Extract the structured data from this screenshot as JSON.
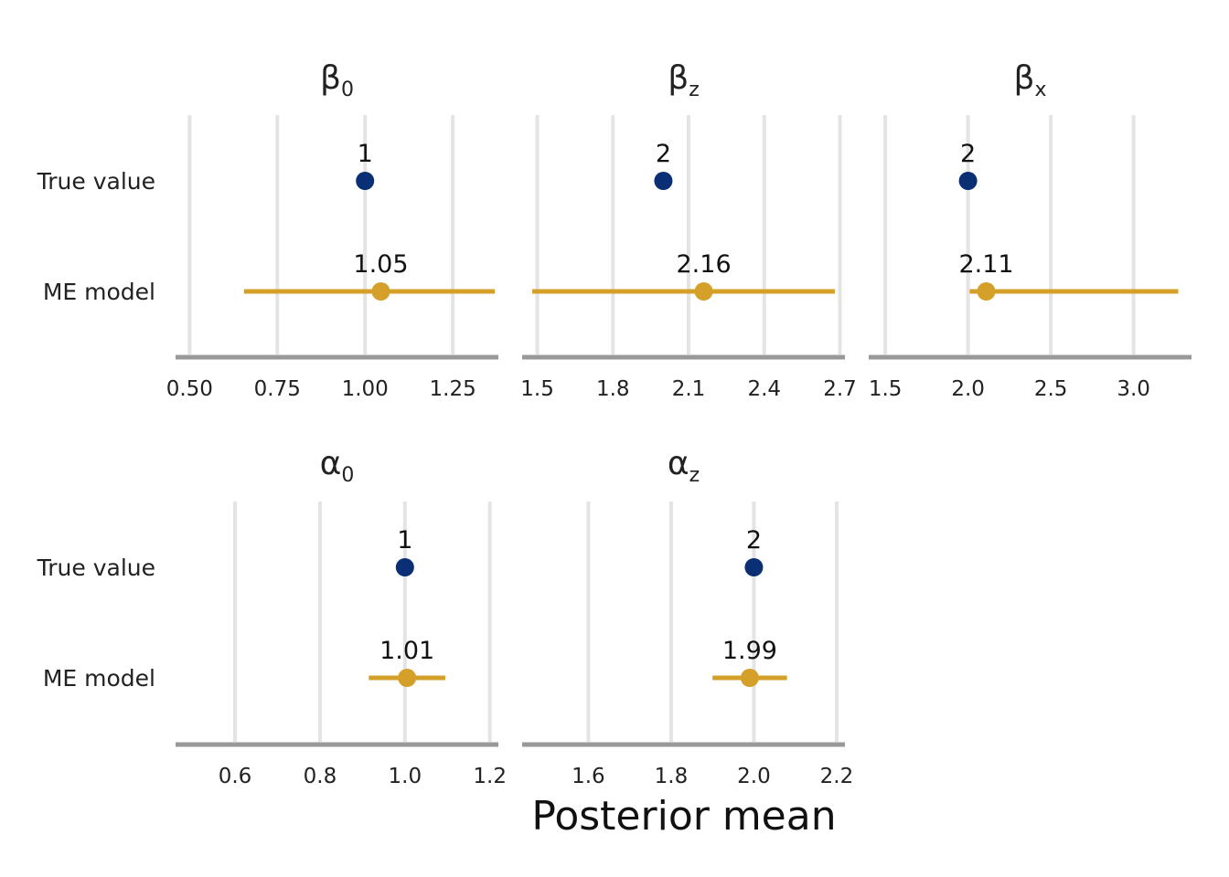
{
  "chart_data": {
    "type": "scatter",
    "xlabel": "Posterior mean",
    "row_labels": [
      "True value",
      "ME model"
    ],
    "colors": {
      "true_value": "#0b2f74",
      "me_model": "#d4a02a",
      "grid": "#e4e4e4",
      "axis": "#999999"
    },
    "panels": [
      {
        "title": {
          "base": "β",
          "sub": "0"
        },
        "xlim": [
          0.46,
          1.38
        ],
        "ticks": [
          0.5,
          0.75,
          1.0,
          1.25
        ],
        "tick_labels": [
          "0.50",
          "0.75",
          "1.00",
          "1.25"
        ],
        "true_value": {
          "x": 1.0,
          "label": "1"
        },
        "me_model": {
          "x": 1.045,
          "lo": 0.655,
          "hi": 1.37,
          "label": "1.05"
        }
      },
      {
        "title": {
          "base": "β",
          "sub": "z"
        },
        "xlim": [
          1.44,
          2.72
        ],
        "ticks": [
          1.5,
          1.8,
          2.1,
          2.4,
          2.7
        ],
        "tick_labels": [
          "1.5",
          "1.8",
          "2.1",
          "2.4",
          "2.7"
        ],
        "true_value": {
          "x": 2.0,
          "label": "2"
        },
        "me_model": {
          "x": 2.16,
          "lo": 1.48,
          "hi": 2.68,
          "label": "2.16"
        }
      },
      {
        "title": {
          "base": "β",
          "sub": "x"
        },
        "xlim": [
          1.4,
          3.35
        ],
        "ticks": [
          1.5,
          2.0,
          2.5,
          3.0
        ],
        "tick_labels": [
          "1.5",
          "2.0",
          "2.5",
          "3.0"
        ],
        "true_value": {
          "x": 2.0,
          "label": "2"
        },
        "me_model": {
          "x": 2.11,
          "lo": 2.01,
          "hi": 3.27,
          "label": "2.11"
        }
      },
      {
        "title": {
          "base": "α",
          "sub": "0"
        },
        "xlim": [
          0.46,
          1.22
        ],
        "ticks": [
          0.6,
          0.8,
          1.0,
          1.2
        ],
        "tick_labels": [
          "0.6",
          "0.8",
          "1.0",
          "1.2"
        ],
        "true_value": {
          "x": 1.0,
          "label": "1"
        },
        "me_model": {
          "x": 1.005,
          "lo": 0.915,
          "hi": 1.095,
          "label": "1.01"
        }
      },
      {
        "title": {
          "base": "α",
          "sub": "z"
        },
        "xlim": [
          1.44,
          2.22
        ],
        "ticks": [
          1.6,
          1.8,
          2.0,
          2.2
        ],
        "tick_labels": [
          "1.6",
          "1.8",
          "2.0",
          "2.2"
        ],
        "true_value": {
          "x": 2.0,
          "label": "2"
        },
        "me_model": {
          "x": 1.99,
          "lo": 1.9,
          "hi": 2.08,
          "label": "1.99"
        }
      }
    ]
  }
}
